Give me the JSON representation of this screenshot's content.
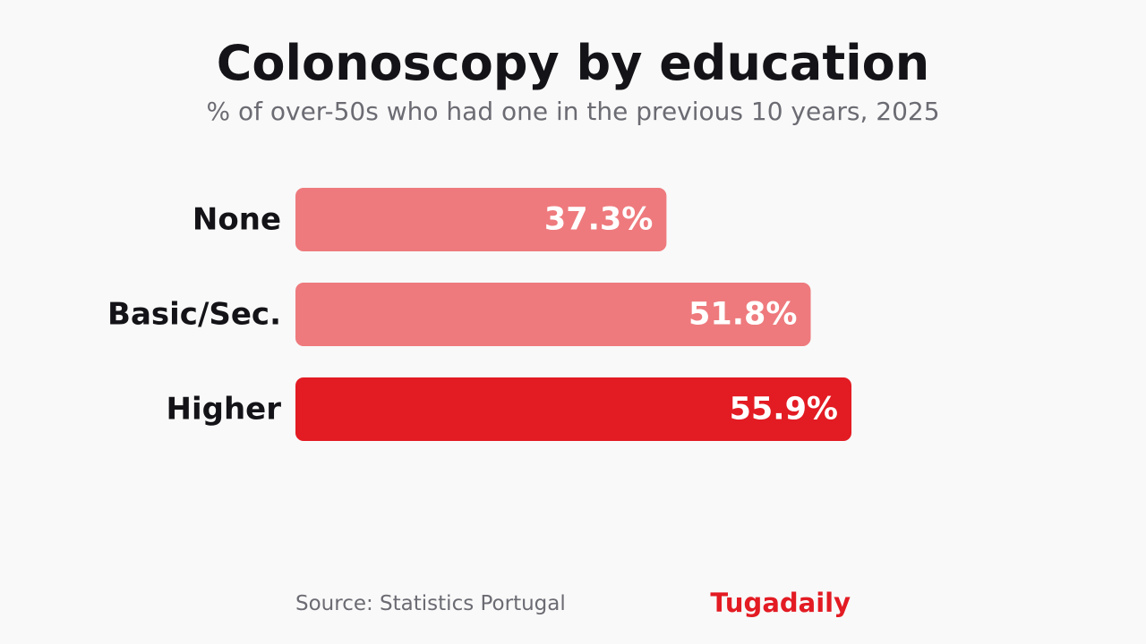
{
  "header": {
    "title": "Colonoscopy by education",
    "subtitle": "% of over-50s who had one in the previous 10 years, 2025"
  },
  "chart_data": {
    "type": "bar",
    "orientation": "horizontal",
    "title": "Colonoscopy by education",
    "subtitle": "% of over-50s who had one in the previous 10 years, 2025",
    "categories": [
      "None",
      "Basic/Sec.",
      "Higher"
    ],
    "values": [
      37.3,
      51.8,
      55.9
    ],
    "value_labels": [
      "37.3%",
      "51.8%",
      "55.9%"
    ],
    "unit": "%",
    "xlim": [
      0,
      55.9
    ],
    "grid": false,
    "legend": "none",
    "colors": [
      "#ee7a7d",
      "#ee7a7d",
      "#e31b23"
    ]
  },
  "footer": {
    "source": "Source: Statistics Portugal",
    "brand": "Tugadaily"
  }
}
